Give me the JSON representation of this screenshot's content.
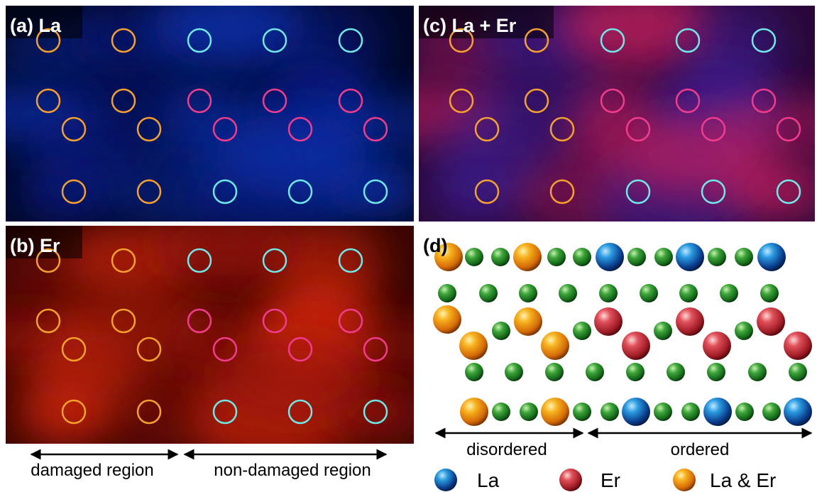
{
  "panels": {
    "a": {
      "label": "(a) La"
    },
    "b": {
      "label": "(b) Er"
    },
    "c": {
      "label": "(c) La + Er"
    },
    "d": {
      "label": "(d)"
    }
  },
  "captions": {
    "left": "damaged region",
    "right": "non-damaged region",
    "disordered": "disordered",
    "ordered": "ordered"
  },
  "legend": [
    "La",
    "Er",
    "La & Er"
  ]
}
